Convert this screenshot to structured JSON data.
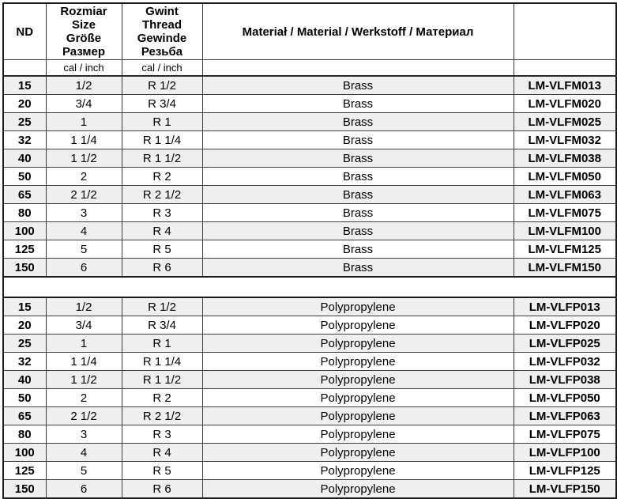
{
  "table": {
    "columns": {
      "nd_label": "ND",
      "size_lines": [
        "Rozmiar",
        "Size",
        "Größe",
        "Размер"
      ],
      "thread_lines": [
        "Gwint",
        "Thread",
        "Gewinde",
        "Резьба"
      ],
      "material_label": "Materiał / Material / Werkstoff / Материал",
      "unit_label": "cal / inch"
    },
    "colors": {
      "row_shade": "#efefef",
      "border": "#3f3f3f",
      "outer_border": "#1a1a1a",
      "text": "#000000"
    },
    "sections": [
      {
        "name": "brass-section",
        "rows": [
          {
            "nd": "15",
            "size": "1/2",
            "thread": "R 1/2",
            "material": "Brass",
            "code": "LM-VLFM013"
          },
          {
            "nd": "20",
            "size": "3/4",
            "thread": "R 3/4",
            "material": "Brass",
            "code": "LM-VLFM020"
          },
          {
            "nd": "25",
            "size": "1",
            "thread": "R 1",
            "material": "Brass",
            "code": "LM-VLFM025"
          },
          {
            "nd": "32",
            "size": "1 1/4",
            "thread": "R 1 1/4",
            "material": "Brass",
            "code": "LM-VLFM032"
          },
          {
            "nd": "40",
            "size": "1 1/2",
            "thread": "R 1 1/2",
            "material": "Brass",
            "code": "LM-VLFM038"
          },
          {
            "nd": "50",
            "size": "2",
            "thread": "R 2",
            "material": "Brass",
            "code": "LM-VLFM050"
          },
          {
            "nd": "65",
            "size": "2 1/2",
            "thread": "R 2 1/2",
            "material": "Brass",
            "code": "LM-VLFM063"
          },
          {
            "nd": "80",
            "size": "3",
            "thread": "R 3",
            "material": "Brass",
            "code": "LM-VLFM075"
          },
          {
            "nd": "100",
            "size": "4",
            "thread": "R 4",
            "material": "Brass",
            "code": "LM-VLFM100"
          },
          {
            "nd": "125",
            "size": "5",
            "thread": "R 5",
            "material": "Brass",
            "code": "LM-VLFM125"
          },
          {
            "nd": "150",
            "size": "6",
            "thread": "R 6",
            "material": "Brass",
            "code": "LM-VLFM150"
          }
        ]
      },
      {
        "name": "polypropylene-section",
        "rows": [
          {
            "nd": "15",
            "size": "1/2",
            "thread": "R 1/2",
            "material": "Polypropylene",
            "code": "LM-VLFP013"
          },
          {
            "nd": "20",
            "size": "3/4",
            "thread": "R 3/4",
            "material": "Polypropylene",
            "code": "LM-VLFP020"
          },
          {
            "nd": "25",
            "size": "1",
            "thread": "R 1",
            "material": "Polypropylene",
            "code": "LM-VLFP025"
          },
          {
            "nd": "32",
            "size": "1 1/4",
            "thread": "R 1 1/4",
            "material": "Polypropylene",
            "code": "LM-VLFP032"
          },
          {
            "nd": "40",
            "size": "1 1/2",
            "thread": "R 1 1/2",
            "material": "Polypropylene",
            "code": "LM-VLFP038"
          },
          {
            "nd": "50",
            "size": "2",
            "thread": "R 2",
            "material": "Polypropylene",
            "code": "LM-VLFP050"
          },
          {
            "nd": "65",
            "size": "2 1/2",
            "thread": "R 2 1/2",
            "material": "Polypropylene",
            "code": "LM-VLFP063"
          },
          {
            "nd": "80",
            "size": "3",
            "thread": "R 3",
            "material": "Polypropylene",
            "code": "LM-VLFP075"
          },
          {
            "nd": "100",
            "size": "4",
            "thread": "R 4",
            "material": "Polypropylene",
            "code": "LM-VLFP100"
          },
          {
            "nd": "125",
            "size": "5",
            "thread": "R 5",
            "material": "Polypropylene",
            "code": "LM-VLFP125"
          },
          {
            "nd": "150",
            "size": "6",
            "thread": "R 6",
            "material": "Polypropylene",
            "code": "LM-VLFP150"
          }
        ]
      }
    ]
  }
}
